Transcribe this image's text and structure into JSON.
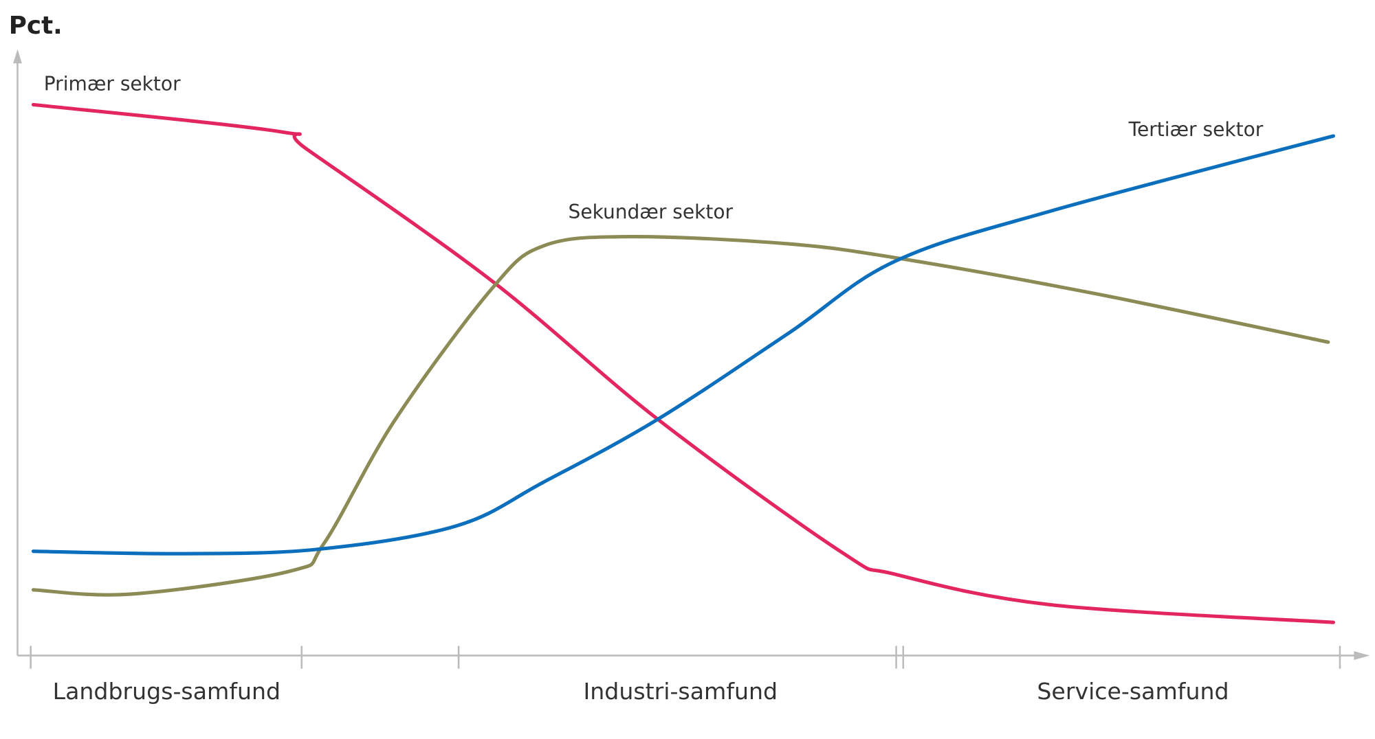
{
  "chart_data": {
    "type": "line",
    "ylabel": "Pct.",
    "xlabel": "",
    "xlim": [
      0,
      100
    ],
    "ylim": [
      0,
      100
    ],
    "grid": false,
    "legend": "inline labels",
    "categories": [
      "Landbrugs-samfund",
      "Industri-samfund",
      "Service-samfund"
    ],
    "series": [
      {
        "name": "Primær sektor",
        "color": "#e3265f",
        "x": [
          0.2,
          19.1,
          21.1,
          35.2,
          47.9,
          61.9,
          66,
          78,
          99.5
        ],
        "y": [
          91.4,
          86.9,
          84.0,
          62.2,
          39.2,
          17.2,
          13.5,
          8.4,
          5.5
        ]
      },
      {
        "name": "Sekundær sektor",
        "color": "#8c8a55",
        "x": [
          0.2,
          7.7,
          19.8,
          22.4,
          27.8,
          35.2,
          39.2,
          45.9,
          57.9,
          66.6,
          81.4,
          99.1
        ],
        "y": [
          10.9,
          10.2,
          14.0,
          18.6,
          39.0,
          60.8,
          68.0,
          69.5,
          68.3,
          65.8,
          60.0,
          52.0
        ]
      },
      {
        "name": "Tertiær sektor",
        "color": "#0b6fbd",
        "x": [
          0.2,
          11.1,
          21.8,
          32.5,
          39.2,
          47.9,
          57.9,
          66.0,
          78.0,
          99.5
        ],
        "y": [
          17.3,
          16.9,
          17.6,
          21.5,
          28.8,
          39.2,
          53.5,
          65.4,
          73.8,
          86.2
        ]
      }
    ]
  }
}
